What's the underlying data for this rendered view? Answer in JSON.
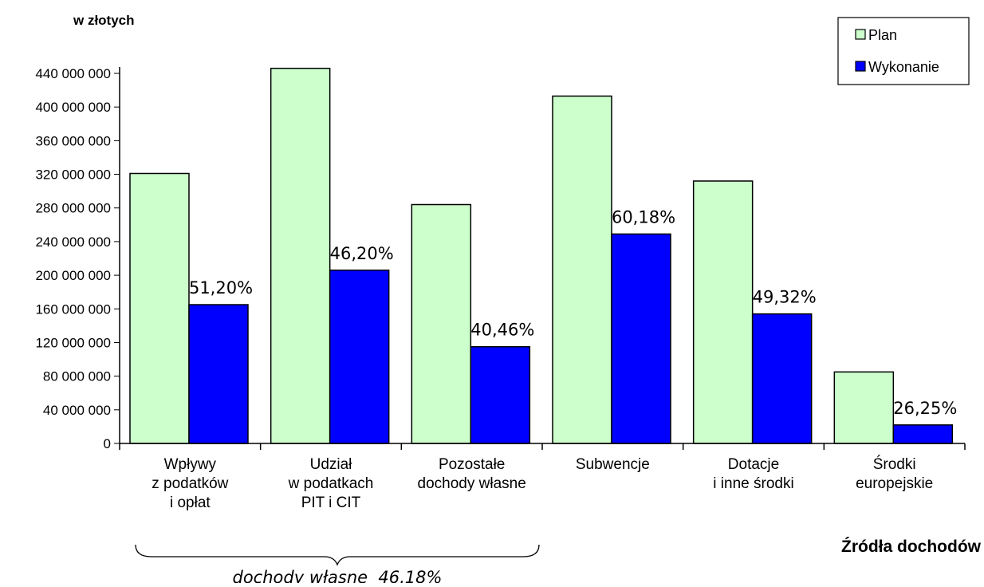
{
  "chart_data": {
    "type": "bar",
    "unit_label": "w złotych",
    "xlabel": "Źródła dochodów",
    "ylabel": "",
    "ylim": [
      0,
      440000000
    ],
    "yticks": [
      0,
      40000000,
      80000000,
      120000000,
      160000000,
      200000000,
      240000000,
      280000000,
      320000000,
      360000000,
      400000000,
      440000000
    ],
    "ytick_labels": [
      "0",
      "40 000 000",
      "80 000 000",
      "120 000 000",
      "160 000 000",
      "200 000 000",
      "240 000 000",
      "280 000 000",
      "320 000 000",
      "360 000 000",
      "400 000 000",
      "440 000 000"
    ],
    "categories": [
      [
        "Wpływy",
        "z podatków",
        "i opłat"
      ],
      [
        "Udział",
        "w podatkach",
        "PIT i CIT"
      ],
      [
        "Pozostałe",
        "dochody własne"
      ],
      [
        "Subwencje"
      ],
      [
        "Dotacje",
        "i inne środki"
      ],
      [
        "Środki",
        "europejskie"
      ]
    ],
    "series": [
      {
        "name": "Plan",
        "color": "#ccffcc",
        "values": [
          321000000,
          446000000,
          284000000,
          413000000,
          312000000,
          85000000
        ]
      },
      {
        "name": "Wykonanie",
        "color": "#0000ff",
        "values": [
          165000000,
          206000000,
          115000000,
          249000000,
          154000000,
          22000000
        ]
      }
    ],
    "data_labels": [
      "51,20%",
      "46,20%",
      "40,46%",
      "60,18%",
      "49,32%",
      "26,25%"
    ],
    "group_annotation": {
      "label": "dochody własne  46,18%",
      "spans_categories": [
        0,
        2
      ]
    },
    "legend_position": "top-right",
    "grid": false
  }
}
